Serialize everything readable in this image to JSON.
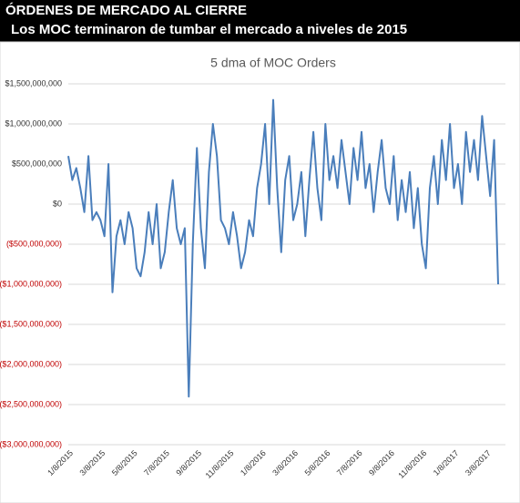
{
  "header": {
    "title": "ÓRDENES DE MERCADO AL CIERRE",
    "subtitle": "Los MOC terminaron de tumbar el mercado a  niveles de  2015"
  },
  "chart_data": {
    "type": "line",
    "title": "5 dma of MOC Orders",
    "categories": [
      "1/8/2015",
      null,
      null,
      null,
      null,
      null,
      null,
      null,
      "3/8/2015",
      null,
      null,
      null,
      null,
      null,
      null,
      null,
      "5/8/2015",
      null,
      null,
      null,
      null,
      null,
      null,
      null,
      "7/8/2015",
      null,
      null,
      null,
      null,
      null,
      null,
      null,
      "9/8/2015",
      null,
      null,
      null,
      null,
      null,
      null,
      null,
      "11/8/2015",
      null,
      null,
      null,
      null,
      null,
      null,
      null,
      "1/8/2016",
      null,
      null,
      null,
      null,
      null,
      null,
      null,
      "3/8/2016",
      null,
      null,
      null,
      null,
      null,
      null,
      null,
      "5/8/2016",
      null,
      null,
      null,
      null,
      null,
      null,
      null,
      "7/8/2016",
      null,
      null,
      null,
      null,
      null,
      null,
      null,
      "9/8/2016",
      null,
      null,
      null,
      null,
      null,
      null,
      null,
      "11/8/2016",
      null,
      null,
      null,
      null,
      null,
      null,
      null,
      "1/8/2017",
      null,
      null,
      null,
      null,
      null,
      null,
      null,
      "3/8/2017",
      null,
      null,
      null
    ],
    "series": [
      {
        "name": "5 dma of MOC Orders",
        "color": "#4a7ebb",
        "values": [
          600000000.0,
          300000000.0,
          450000000.0,
          200000000.0,
          -100000000.0,
          600000000.0,
          -200000000.0,
          -100000000.0,
          -200000000.0,
          -400000000.0,
          500000000.0,
          -1100000000.0,
          -400000000.0,
          -200000000.0,
          -500000000.0,
          -100000000.0,
          -300000000.0,
          -800000000.0,
          -900000000.0,
          -600000000.0,
          -100000000.0,
          -500000000.0,
          0,
          -800000000.0,
          -600000000.0,
          -100000000.0,
          300000000.0,
          -300000000.0,
          -500000000.0,
          -300000000.0,
          -2400000000.0,
          -500000000.0,
          700000000.0,
          -300000000.0,
          -800000000.0,
          400000000.0,
          1000000000.0,
          600000000.0,
          -200000000.0,
          -300000000.0,
          -500000000.0,
          -100000000.0,
          -400000000.0,
          -800000000.0,
          -600000000.0,
          -200000000.0,
          -400000000.0,
          200000000.0,
          500000000.0,
          1000000000.0,
          0,
          1300000000.0,
          200000000.0,
          -600000000.0,
          300000000.0,
          600000000.0,
          -200000000.0,
          0,
          400000000.0,
          -400000000.0,
          300000000.0,
          900000000.0,
          200000000.0,
          -200000000.0,
          1000000000.0,
          300000000.0,
          600000000.0,
          200000000.0,
          800000000.0,
          400000000.0,
          0,
          700000000.0,
          300000000.0,
          900000000.0,
          200000000.0,
          500000000.0,
          -100000000.0,
          400000000.0,
          800000000.0,
          200000000.0,
          0,
          600000000.0,
          -200000000.0,
          300000000.0,
          -100000000.0,
          400000000.0,
          -300000000.0,
          200000000.0,
          -500000000.0,
          -800000000.0,
          200000000.0,
          600000000.0,
          0,
          800000000.0,
          300000000.0,
          1000000000.0,
          200000000.0,
          500000000.0,
          0,
          900000000.0,
          400000000.0,
          800000000.0,
          300000000.0,
          1100000000.0,
          600000000.0,
          100000000.0,
          800000000.0,
          -1000000000.0
        ]
      }
    ],
    "ylim": [
      -3000000000.0,
      1500000000.0
    ],
    "yticks": [
      {
        "value": 1500000000.0,
        "label": "$1,500,000,000"
      },
      {
        "value": 1000000000.0,
        "label": "$1,000,000,000"
      },
      {
        "value": 500000000.0,
        "label": "$500,000,000"
      },
      {
        "value": 0,
        "label": "$0"
      },
      {
        "value": -500000000.0,
        "label": "($500,000,000)"
      },
      {
        "value": -1000000000.0,
        "label": "($1,000,000,000)"
      },
      {
        "value": -1500000000.0,
        "label": "($1,500,000,000)"
      },
      {
        "value": -2000000000.0,
        "label": "($2,000,000,000)"
      },
      {
        "value": -2500000000.0,
        "label": "($2,500,000,000)"
      },
      {
        "value": -3000000000.0,
        "label": "($3,000,000,000)"
      }
    ],
    "grid": true,
    "negative_tick_color": "#c00000"
  }
}
